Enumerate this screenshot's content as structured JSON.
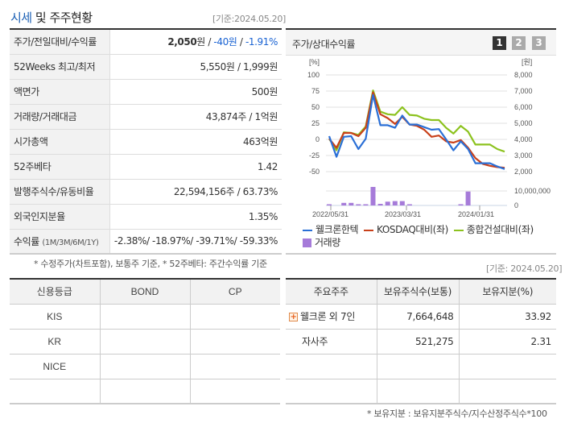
{
  "left_panel": {
    "title_accent": "시세",
    "title_rest": " 및 주주현황",
    "as_of": "[기준:2024.05.20]",
    "rows": [
      {
        "label": "주가/전일대비/수익률",
        "price": "2,050",
        "price_unit": "원",
        "sep1": " / ",
        "change": "-40원",
        "sep2": " / ",
        "rate": "-1.91%"
      },
      {
        "label": "52Weeks 최고/최저",
        "value": "5,550원 / 1,999원"
      },
      {
        "label": "액면가",
        "value": "500원"
      },
      {
        "label": "거래량/거래대금",
        "value": "43,874주 / 1억원"
      },
      {
        "label": "시가총액",
        "value": "463억원"
      },
      {
        "label": "52주베타",
        "value": "1.42"
      },
      {
        "label": "발행주식수/유동비율",
        "value": "22,594,156주 / 63.73%"
      },
      {
        "label": "외국인지분율",
        "value": "1.35%"
      },
      {
        "label": "수익률",
        "label_sub": "(1M/3M/6M/1Y)",
        "value": "-2.38%/ -18.97%/ -39.71%/ -59.33%"
      }
    ],
    "footnote": "* 수정주가(차트포함), 보통주 기준, * 52주베타: 주간수익률 기준"
  },
  "chart_panel": {
    "title": "주가/상대수익률",
    "pages": [
      "1",
      "2",
      "3"
    ],
    "active_page": "1",
    "as_of": "[기준: 2024.05.20]"
  },
  "chart_data": {
    "type": "line",
    "title": "주가/상대수익률",
    "ylabel_left": "[%]",
    "ylabel_right": "[원]",
    "yticks_left": [
      "100",
      "75",
      "50",
      "25",
      "0",
      "-25",
      "-50"
    ],
    "yticks_right": [
      "8,000",
      "7,000",
      "6,000",
      "5,000",
      "4,000",
      "3,000",
      "2,000"
    ],
    "ylim_left": [
      -50,
      100
    ],
    "ylim_right": [
      2000,
      8000
    ],
    "volume_ticks": [
      "10,000,000",
      "0"
    ],
    "x_tick_labels": [
      "2022/05/31",
      "2023/03/31",
      "2024/01/31"
    ],
    "grid": true,
    "legend_position": "bottom",
    "series": [
      {
        "name": "웰크론한텍",
        "color": "#2a6fd6",
        "values": [
          5,
          -27,
          4,
          5,
          -15,
          1,
          69,
          22,
          22,
          18,
          37,
          23,
          23,
          19,
          15,
          16,
          0,
          -17,
          -3,
          -15,
          -37,
          -37,
          -37,
          -42,
          -46
        ]
      },
      {
        "name": "KOSDAQ대비(좌)",
        "color": "#c8401a",
        "values": [
          1,
          -13,
          10,
          10,
          5,
          18,
          73,
          39,
          33,
          24,
          35,
          23,
          21,
          15,
          4,
          6,
          -3,
          -5,
          -1,
          -13,
          -29,
          -38,
          -41,
          -43,
          -44
        ]
      },
      {
        "name": "종합건설대비(좌)",
        "color": "#8cc21e",
        "values": [
          1,
          -17,
          11,
          10,
          7,
          20,
          76,
          43,
          39,
          38,
          50,
          38,
          37,
          32,
          30,
          30,
          18,
          9,
          21,
          12,
          -8,
          -8,
          -8,
          -15,
          -19
        ]
      }
    ],
    "volume": {
      "name": "거래량",
      "color": "#a67bd9",
      "values": [
        300000,
        0,
        1800000,
        1800000,
        600000,
        600000,
        12800000,
        1100000,
        2600000,
        3000000,
        3000000,
        500000,
        0,
        0,
        0,
        0,
        0,
        0,
        400000,
        9600000,
        0,
        0,
        0,
        0,
        0
      ]
    }
  },
  "credit_table": {
    "headers": [
      "신용등급",
      "BOND",
      "CP"
    ],
    "rows": [
      [
        "KIS",
        "",
        ""
      ],
      [
        "KR",
        "",
        ""
      ],
      [
        "NICE",
        "",
        ""
      ],
      [
        "",
        "",
        ""
      ]
    ]
  },
  "holders_table": {
    "headers": [
      "주요주주",
      "보유주식수(보통)",
      "보유지분(%)"
    ],
    "header_sub": [
      "",
      "(보통)",
      "(%)"
    ],
    "rows": [
      {
        "name": "웰크론 외 7인",
        "expandable": true,
        "shares": "7,664,648",
        "pct": "33.92"
      },
      {
        "name": "자사주",
        "expandable": false,
        "shares": "521,275",
        "pct": "2.31"
      },
      {
        "name": "",
        "shares": "",
        "pct": ""
      },
      {
        "name": "",
        "shares": "",
        "pct": ""
      }
    ],
    "footnote": "* 보유지분 : 보유지분주식수/지수산정주식수*100"
  }
}
